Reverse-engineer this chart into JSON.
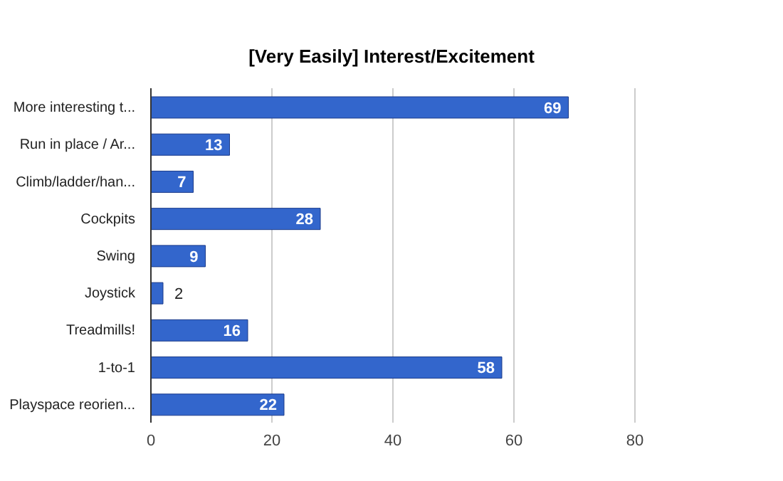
{
  "chart_data": {
    "type": "bar",
    "orientation": "horizontal",
    "title": "[Very Easily] Interest/Excitement",
    "categories": [
      "More interesting t...",
      "Run in place / Ar...",
      "Climb/ladder/han...",
      "Cockpits",
      "Swing",
      "Joystick",
      "Treadmills!",
      "1-to-1",
      "Playspace reorien..."
    ],
    "values": [
      69,
      13,
      7,
      28,
      9,
      2,
      16,
      58,
      22
    ],
    "color": "#3366cc",
    "xlim": [
      0,
      80
    ],
    "xticks": [
      0,
      20,
      40,
      60,
      80
    ],
    "grid": "x",
    "data_labels": true
  }
}
